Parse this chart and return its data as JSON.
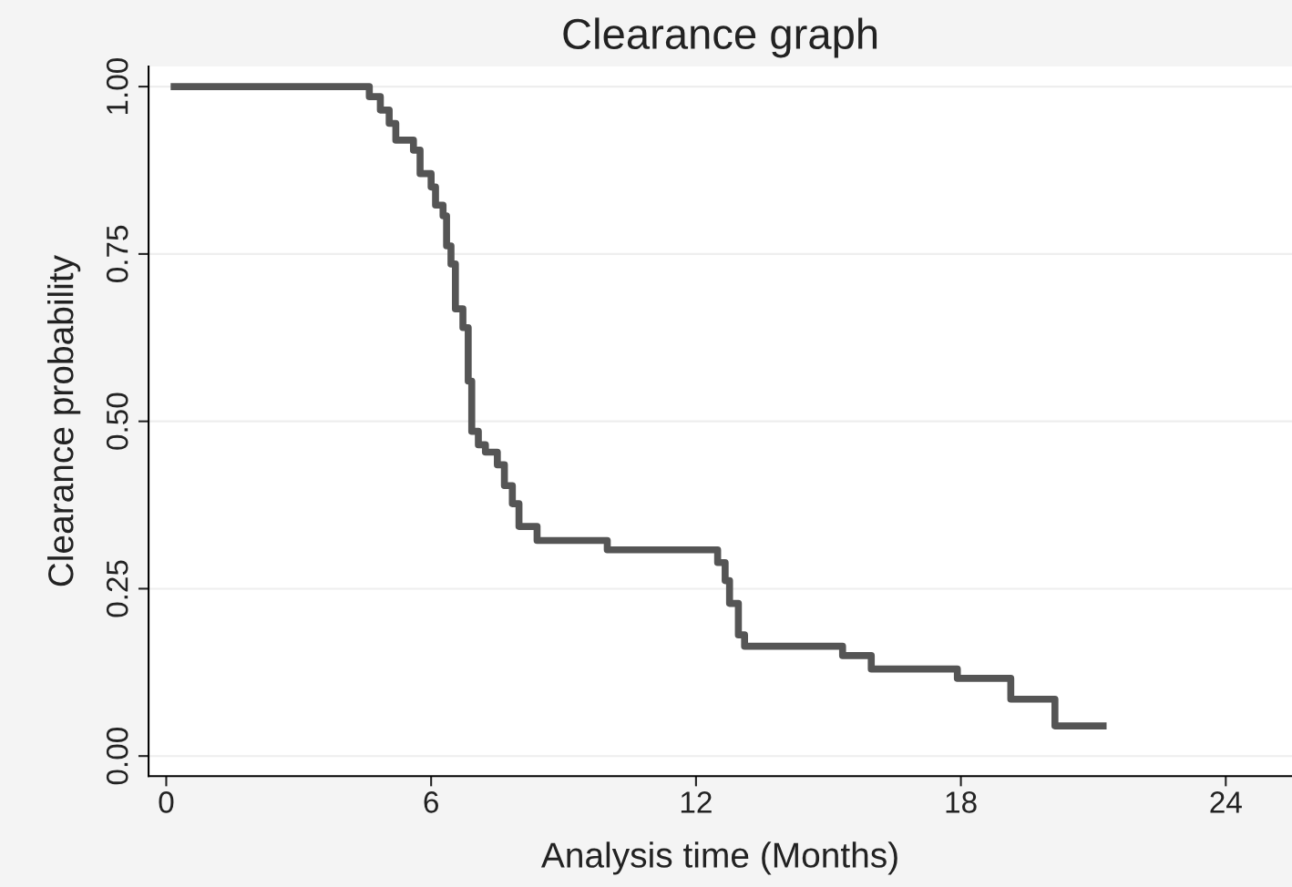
{
  "chart_data": {
    "type": "step",
    "title": "Clearance graph",
    "xlabel": "Analysis time (Months)",
    "ylabel": "Clearance probability",
    "x": [
      0.1,
      4.6,
      4.85,
      5.05,
      5.2,
      5.6,
      5.75,
      6.0,
      6.1,
      6.27,
      6.35,
      6.45,
      6.55,
      6.72,
      6.84,
      6.92,
      7.07,
      7.23,
      7.5,
      7.66,
      7.84,
      7.99,
      8.4,
      9.99,
      12.49,
      12.66,
      12.76,
      12.96,
      13.1,
      15.32,
      15.97,
      17.92,
      19.13,
      20.13,
      21.3
    ],
    "series": [
      {
        "color": "#555555",
        "values": [
          1.0,
          0.985,
          0.965,
          0.945,
          0.92,
          0.905,
          0.87,
          0.85,
          0.823,
          0.807,
          0.762,
          0.735,
          0.668,
          0.64,
          0.56,
          0.485,
          0.465,
          0.454,
          0.435,
          0.404,
          0.377,
          0.343,
          0.322,
          0.308,
          0.289,
          0.262,
          0.228,
          0.181,
          0.164,
          0.15,
          0.13,
          0.116,
          0.085,
          0.045,
          0.045
        ]
      }
    ],
    "xlim": [
      -0.4,
      25.5
    ],
    "xticks": [
      0,
      6,
      12,
      18,
      24
    ],
    "ylim": [
      -0.03,
      1.03
    ],
    "yticks": [
      {
        "value": 0,
        "label": "0.00"
      },
      {
        "value": 0.25,
        "label": "0.25"
      },
      {
        "value": 0.5,
        "label": "0.50"
      },
      {
        "value": 0.75,
        "label": "0.75"
      },
      {
        "value": 1,
        "label": "1.00"
      }
    ],
    "grid": "y",
    "legend": false
  }
}
